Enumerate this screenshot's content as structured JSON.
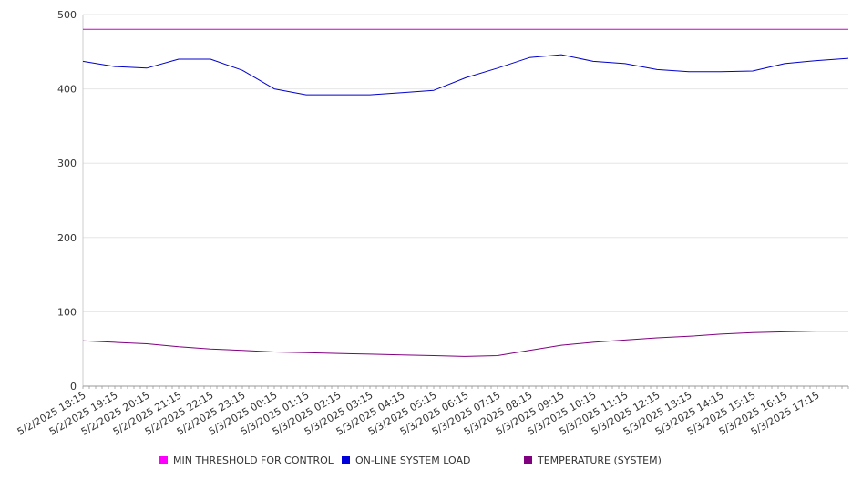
{
  "chart_data": {
    "type": "line",
    "title": "",
    "xlabel": "",
    "ylabel": "",
    "ylim": [
      0,
      500
    ],
    "yticks": [
      0,
      100,
      200,
      300,
      400,
      500
    ],
    "grid": "horizontal",
    "legend_position": "bottom",
    "x_tick_labels": [
      "5/2/2025 18:15",
      "5/2/2025 19:15",
      "5/2/2025 20:15",
      "5/2/2025 21:15",
      "5/2/2025 22:15",
      "5/2/2025 23:15",
      "5/3/2025 00:15",
      "5/3/2025 01:15",
      "5/3/2025 02:15",
      "5/3/2025 03:15",
      "5/3/2025 04:15",
      "5/3/2025 05:15",
      "5/3/2025 06:15",
      "5/3/2025 07:15",
      "5/3/2025 08:15",
      "5/3/2025 09:15",
      "5/3/2025 10:15",
      "5/3/2025 11:15",
      "5/3/2025 12:15",
      "5/3/2025 13:15",
      "5/3/2025 14:15",
      "5/3/2025 15:15",
      "5/3/2025 16:15",
      "5/3/2025 17:15"
    ],
    "x_range": [
      "5/2/2025 18:15",
      "5/3/2025 18:15"
    ],
    "series": [
      {
        "name": "MIN THRESHOLD FOR CONTROL",
        "color": "#cc00cc",
        "values": [
          480,
          480,
          480,
          480,
          480,
          480,
          480,
          480,
          480,
          480,
          480,
          480,
          480,
          480,
          480,
          480,
          480,
          480,
          480,
          480,
          480,
          480,
          480,
          480,
          480
        ]
      },
      {
        "name": "ON-LINE SYSTEM LOAD",
        "color": "#0000cc",
        "values": [
          437,
          430,
          428,
          440,
          440,
          425,
          400,
          392,
          392,
          392,
          395,
          398,
          415,
          428,
          442,
          446,
          437,
          434,
          426,
          423,
          423,
          424,
          434,
          438,
          441
        ]
      },
      {
        "name": "TEMPERATURE (SYSTEM)",
        "color": "#800080",
        "values": [
          61,
          59,
          57,
          53,
          50,
          48,
          46,
          45,
          44,
          43,
          42,
          41,
          40,
          41,
          48,
          55,
          59,
          62,
          65,
          67,
          70,
          72,
          73,
          74,
          74
        ]
      }
    ]
  }
}
